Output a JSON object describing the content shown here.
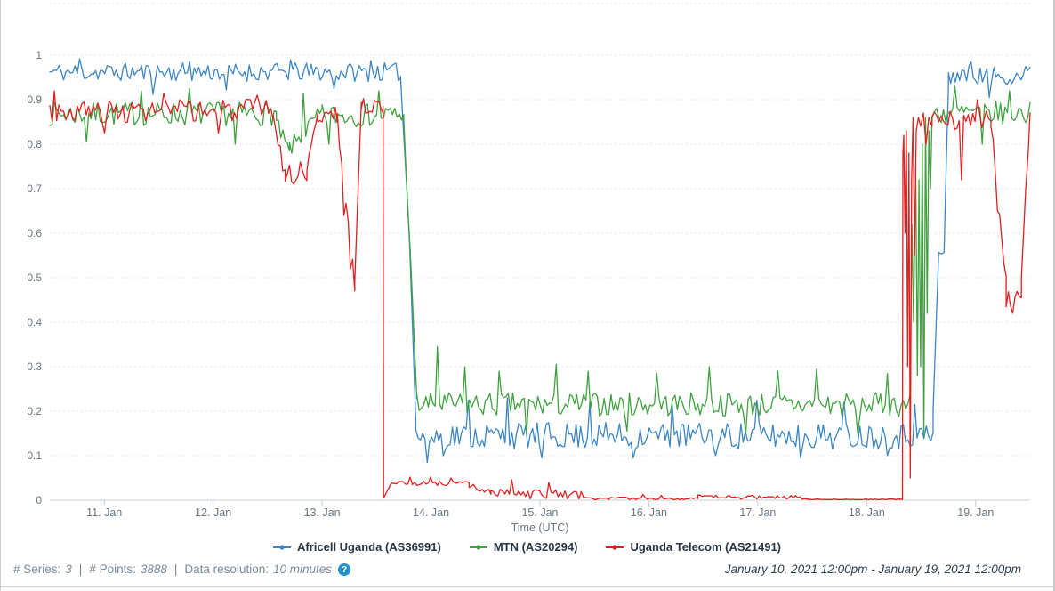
{
  "chart_data": {
    "type": "line",
    "title": "",
    "xlabel": "Time (UTC)",
    "ylabel": "",
    "grid": "horizontal-dashed",
    "legend_position": "bottom",
    "ylim": [
      0,
      1.112
    ],
    "x_domain_days": 9,
    "x_start": "January 10, 2021 12:00pm",
    "x_end": "January 19, 2021 12:00pm",
    "y_ticks": [
      {
        "label": "1",
        "value": 1
      },
      {
        "label": "0.9",
        "value": 0.9
      },
      {
        "label": "0.8",
        "value": 0.8
      },
      {
        "label": "0.7",
        "value": 0.7
      },
      {
        "label": "0.6",
        "value": 0.6
      },
      {
        "label": "0.5",
        "value": 0.5
      },
      {
        "label": "0.4",
        "value": 0.4
      },
      {
        "label": "0.3",
        "value": 0.3
      },
      {
        "label": "0.2",
        "value": 0.2
      },
      {
        "label": "0.1",
        "value": 0.1
      },
      {
        "label": "0",
        "value": 0
      }
    ],
    "x_ticks": [
      {
        "label": "11. Jan",
        "day": 0.5
      },
      {
        "label": "12. Jan",
        "day": 1.5
      },
      {
        "label": "13. Jan",
        "day": 2.5
      },
      {
        "label": "14. Jan",
        "day": 3.5
      },
      {
        "label": "15. Jan",
        "day": 4.5
      },
      {
        "label": "16. Jan",
        "day": 5.5
      },
      {
        "label": "17. Jan",
        "day": 6.5
      },
      {
        "label": "18. Jan",
        "day": 7.5
      },
      {
        "label": "19. Jan",
        "day": 8.5
      }
    ],
    "series": [
      {
        "name": "Africell Uganda (AS36991)",
        "color": "#3b86c4",
        "seed": 11,
        "segments": [
          {
            "d0": 0,
            "d1": 3.22,
            "v0": 0.962,
            "v1": 0.962,
            "noise": 0.021,
            "spikes": [
              {
                "d": 0.28,
                "v": 0.992
              },
              {
                "d": 0.95,
                "v": 0.912
              },
              {
                "d": 1.28,
                "v": 0.985
              },
              {
                "d": 1.62,
                "v": 0.922
              },
              {
                "d": 2.22,
                "v": 0.99
              },
              {
                "d": 2.62,
                "v": 0.925
              },
              {
                "d": 2.95,
                "v": 0.988
              }
            ]
          },
          {
            "d0": 3.22,
            "d1": 3.3,
            "v0": 0.95,
            "v1": 0.6,
            "noise": 0.012
          },
          {
            "d0": 3.3,
            "d1": 3.36,
            "v0": 0.6,
            "v1": 0.18,
            "noise": 0.006
          },
          {
            "d0": 3.36,
            "d1": 8.11,
            "v0": 0.145,
            "v1": 0.145,
            "noise": 0.03,
            "spikes": [
              {
                "d": 3.47,
                "v": 0.085
              },
              {
                "d": 3.62,
                "v": 0.1
              },
              {
                "d": 3.84,
                "v": 0.225
              },
              {
                "d": 4.2,
                "v": 0.23
              },
              {
                "d": 4.52,
                "v": 0.095
              },
              {
                "d": 4.95,
                "v": 0.22
              },
              {
                "d": 5.35,
                "v": 0.095
              },
              {
                "d": 5.72,
                "v": 0.215
              },
              {
                "d": 6.12,
                "v": 0.1
              },
              {
                "d": 6.5,
                "v": 0.225
              },
              {
                "d": 6.9,
                "v": 0.095
              },
              {
                "d": 7.3,
                "v": 0.22
              },
              {
                "d": 7.7,
                "v": 0.1
              },
              {
                "d": 7.95,
                "v": 0.215
              }
            ]
          },
          {
            "d0": 8.11,
            "d1": 8.16,
            "v0": 0.2,
            "v1": 0.55,
            "noise": 0.012
          },
          {
            "d0": 8.16,
            "d1": 8.21,
            "v0": 0.55,
            "v1": 0.56,
            "noise": 0.018
          },
          {
            "d0": 8.21,
            "d1": 8.25,
            "v0": 0.56,
            "v1": 0.93,
            "noise": 0.006
          },
          {
            "d0": 8.25,
            "d1": 9,
            "v0": 0.955,
            "v1": 0.955,
            "noise": 0.021,
            "spikes": [
              {
                "d": 8.45,
                "v": 0.985
              },
              {
                "d": 8.62,
                "v": 0.905
              },
              {
                "d": 8.95,
                "v": 0.975
              }
            ]
          }
        ]
      },
      {
        "name": "MTN (AS20294)",
        "color": "#3fa23e",
        "seed": 7,
        "segments": [
          {
            "d0": 0,
            "d1": 2.08,
            "v0": 0.868,
            "v1": 0.868,
            "noise": 0.027,
            "spikes": [
              {
                "d": 0.34,
                "v": 0.805
              },
              {
                "d": 0.85,
                "v": 0.92
              },
              {
                "d": 1.28,
                "v": 0.925
              },
              {
                "d": 1.7,
                "v": 0.8
              }
            ]
          },
          {
            "d0": 2.08,
            "d1": 2.2,
            "v0": 0.845,
            "v1": 0.78,
            "noise": 0.02
          },
          {
            "d0": 2.2,
            "d1": 2.5,
            "v0": 0.79,
            "v1": 0.87,
            "noise": 0.022,
            "spikes": [
              {
                "d": 2.33,
                "v": 0.915
              }
            ]
          },
          {
            "d0": 2.5,
            "d1": 3.25,
            "v0": 0.865,
            "v1": 0.865,
            "noise": 0.026,
            "spikes": [
              {
                "d": 2.57,
                "v": 0.8
              },
              {
                "d": 3.02,
                "v": 0.92
              }
            ]
          },
          {
            "d0": 3.25,
            "d1": 3.31,
            "v0": 0.85,
            "v1": 0.55,
            "noise": 0.01
          },
          {
            "d0": 3.31,
            "d1": 3.37,
            "v0": 0.55,
            "v1": 0.23,
            "noise": 0.008
          },
          {
            "d0": 3.37,
            "d1": 7.9,
            "v0": 0.215,
            "v1": 0.215,
            "noise": 0.027,
            "spikes": [
              {
                "d": 3.55,
                "v": 0.345
              },
              {
                "d": 3.8,
                "v": 0.3
              },
              {
                "d": 4.12,
                "v": 0.29
              },
              {
                "d": 4.38,
                "v": 0.15
              },
              {
                "d": 4.65,
                "v": 0.305
              },
              {
                "d": 4.95,
                "v": 0.29
              },
              {
                "d": 5.3,
                "v": 0.155
              },
              {
                "d": 5.58,
                "v": 0.285
              },
              {
                "d": 6.05,
                "v": 0.3
              },
              {
                "d": 6.4,
                "v": 0.15
              },
              {
                "d": 6.68,
                "v": 0.29
              },
              {
                "d": 7.05,
                "v": 0.295
              },
              {
                "d": 7.42,
                "v": 0.15
              },
              {
                "d": 7.68,
                "v": 0.285
              }
            ]
          },
          {
            "points": [
              [
                7.9,
                0.25
              ],
              [
                7.915,
                0.62
              ],
              [
                7.93,
                0.4
              ],
              [
                7.95,
                0.75
              ],
              [
                7.965,
                0.28
              ],
              [
                7.98,
                0.72
              ],
              [
                7.995,
                0.3
              ],
              [
                8.01,
                0.8
              ],
              [
                8.025,
                0.14
              ],
              [
                8.04,
                0.86
              ],
              [
                8.055,
                0.42
              ],
              [
                8.07,
                0.83
              ],
              [
                8.085,
                0.7
              ],
              [
                8.1,
                0.86
              ]
            ]
          },
          {
            "d0": 8.1,
            "d1": 9,
            "v0": 0.87,
            "v1": 0.87,
            "noise": 0.027,
            "spikes": [
              {
                "d": 8.3,
                "v": 0.93
              },
              {
                "d": 8.55,
                "v": 0.8
              },
              {
                "d": 8.82,
                "v": 0.92
              }
            ]
          }
        ]
      },
      {
        "name": "Uganda Telecom (AS21491)",
        "color": "#e02020",
        "seed": 3,
        "segments": [
          {
            "d0": 0,
            "d1": 2.05,
            "v0": 0.875,
            "v1": 0.875,
            "noise": 0.026,
            "spikes": [
              {
                "d": 0.05,
                "v": 0.92
              },
              {
                "d": 0.5,
                "v": 0.825
              },
              {
                "d": 1.05,
                "v": 0.915
              },
              {
                "d": 1.55,
                "v": 0.825
              },
              {
                "d": 1.9,
                "v": 0.91
              }
            ]
          },
          {
            "d0": 2.05,
            "d1": 2.16,
            "v0": 0.86,
            "v1": 0.73,
            "noise": 0.018
          },
          {
            "d0": 2.16,
            "d1": 2.36,
            "v0": 0.735,
            "v1": 0.74,
            "noise": 0.022,
            "spikes": [
              {
                "d": 2.25,
                "v": 0.71
              }
            ]
          },
          {
            "d0": 2.36,
            "d1": 2.46,
            "v0": 0.75,
            "v1": 0.86,
            "noise": 0.015
          },
          {
            "d0": 2.46,
            "d1": 2.64,
            "v0": 0.865,
            "v1": 0.865,
            "noise": 0.02
          },
          {
            "d0": 2.64,
            "d1": 2.8,
            "v0": 0.85,
            "v1": 0.49,
            "noise": 0.02,
            "spikes": [
              {
                "d": 2.7,
                "v": 0.64
              },
              {
                "d": 2.76,
                "v": 0.52
              }
            ]
          },
          {
            "d0": 2.8,
            "d1": 2.86,
            "v0": 0.49,
            "v1": 0.895,
            "noise": 0.01
          },
          {
            "d0": 2.86,
            "d1": 3.06,
            "v0": 0.885,
            "v1": 0.885,
            "noise": 0.018
          },
          {
            "d0": 3.06,
            "d1": 3.064,
            "v0": 0.885,
            "v1": 0.008,
            "noise": 0
          },
          {
            "d0": 3.064,
            "d1": 3.12,
            "v0": 0.008,
            "v1": 0.032,
            "noise": 0.004
          },
          {
            "d0": 3.12,
            "d1": 3.85,
            "v0": 0.038,
            "v1": 0.038,
            "noise": 0.005,
            "spikes": [
              {
                "d": 3.3,
                "v": 0.052
              },
              {
                "d": 3.5,
                "v": 0.052
              },
              {
                "d": 3.68,
                "v": 0.05
              }
            ]
          },
          {
            "d0": 3.85,
            "d1": 4.05,
            "v0": 0.032,
            "v1": 0.018,
            "noise": 0.007
          },
          {
            "d0": 4.05,
            "d1": 4.9,
            "v0": 0.016,
            "v1": 0.012,
            "noise": 0.011,
            "spikes": [
              {
                "d": 4.25,
                "v": 0.046
              },
              {
                "d": 4.42,
                "v": 0.003
              },
              {
                "d": 4.58,
                "v": 0.04
              },
              {
                "d": 4.75,
                "v": 0.003
              }
            ]
          },
          {
            "d0": 4.9,
            "d1": 5.95,
            "v0": 0.004,
            "v1": 0.004,
            "noise": 0.003,
            "spikes": [
              {
                "d": 5.45,
                "v": 0.013
              },
              {
                "d": 5.62,
                "v": 0.011
              }
            ]
          },
          {
            "d0": 5.95,
            "d1": 6.95,
            "v0": 0.007,
            "v1": 0.007,
            "noise": 0.005
          },
          {
            "d0": 6.95,
            "d1": 7.828,
            "v0": 0.002,
            "v1": 0.002,
            "noise": 0.001
          },
          {
            "d0": 7.828,
            "d1": 7.832,
            "v0": 0.002,
            "v1": 0.78,
            "noise": 0
          },
          {
            "points": [
              [
                7.84,
                0.82
              ],
              [
                7.852,
                0.6
              ],
              [
                7.864,
                0.83
              ],
              [
                7.876,
                0.3
              ],
              [
                7.888,
                0.78
              ],
              [
                7.9,
                0.05
              ],
              [
                7.912,
                0.72
              ],
              [
                7.925,
                0.86
              ],
              [
                7.94,
                0.55
              ],
              [
                7.955,
                0.83
              ],
              [
                7.975,
                0.86
              ],
              [
                7.995,
                0.84
              ],
              [
                8.02,
                0.87
              ],
              [
                8.045,
                0.8
              ],
              [
                8.07,
                0.86
              ],
              [
                8.1,
                0.84
              ]
            ]
          },
          {
            "d0": 8.1,
            "d1": 8.64,
            "v0": 0.855,
            "v1": 0.855,
            "noise": 0.025,
            "spikes": [
              {
                "d": 8.38,
                "v": 0.72
              },
              {
                "d": 8.52,
                "v": 0.9
              }
            ]
          },
          {
            "d0": 8.64,
            "d1": 8.78,
            "v0": 0.84,
            "v1": 0.5,
            "noise": 0.02,
            "spikes": [
              {
                "d": 8.7,
                "v": 0.65
              }
            ]
          },
          {
            "d0": 8.78,
            "d1": 8.92,
            "v0": 0.46,
            "v1": 0.46,
            "noise": 0.03,
            "spikes": [
              {
                "d": 8.85,
                "v": 0.42
              }
            ]
          },
          {
            "d0": 8.92,
            "d1": 9,
            "v0": 0.5,
            "v1": 0.88,
            "noise": 0.015
          }
        ]
      }
    ],
    "colors": {
      "grid": "#e7e7e7",
      "zero_axis": "#c7ced5",
      "tick": "#c2cfdd",
      "axis_text": "#6b7680"
    }
  },
  "footer": {
    "series_label": "# Series:",
    "series_value": "3",
    "points_label": "# Points:",
    "points_value": "3888",
    "resolution_label": "Data resolution:",
    "resolution_value": "10 minutes",
    "divider": "|",
    "help_glyph": "?",
    "time_range": "January 10, 2021 12:00pm - January 19, 2021 12:00pm"
  }
}
